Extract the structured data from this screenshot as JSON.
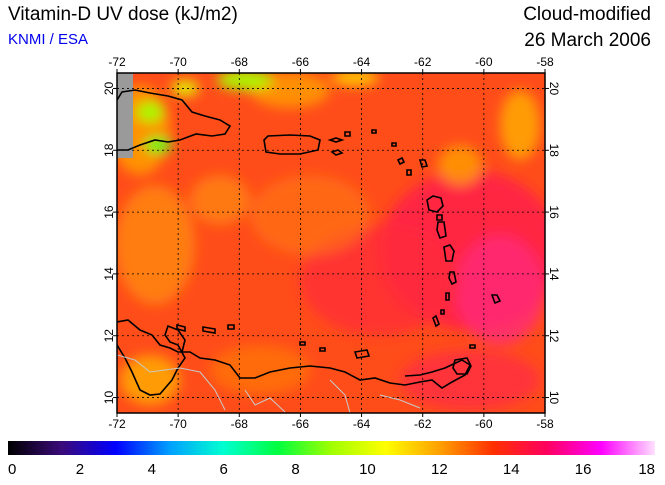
{
  "header": {
    "title": "Vitamin-D UV dose (kJ/m2)",
    "source": "KNMI / ESA",
    "product": "Cloud-modified",
    "date": "26 March 2006"
  },
  "map": {
    "lon_range": [
      -72,
      -58
    ],
    "lat_range": [
      9.5,
      20.5
    ],
    "lon_ticks": [
      "-72",
      "-70",
      "-68",
      "-66",
      "-64",
      "-62",
      "-60",
      "-58"
    ],
    "lat_ticks": [
      "10",
      "12",
      "14",
      "16",
      "18",
      "20"
    ],
    "gridlines": true,
    "background_color": "#ff4d1a"
  },
  "colorbar": {
    "range": [
      0,
      18
    ],
    "tick_labels": [
      "0",
      "2",
      "4",
      "6",
      "8",
      "10",
      "12",
      "14",
      "16",
      "18"
    ],
    "colors": [
      "#000000",
      "#3a0a7a",
      "#0000ff",
      "#00a0ff",
      "#00ffd0",
      "#00ff40",
      "#a0ff00",
      "#ffff00",
      "#ffa000",
      "#ff3000",
      "#ff0060",
      "#ff00ff",
      "#ffe0ff"
    ]
  }
}
